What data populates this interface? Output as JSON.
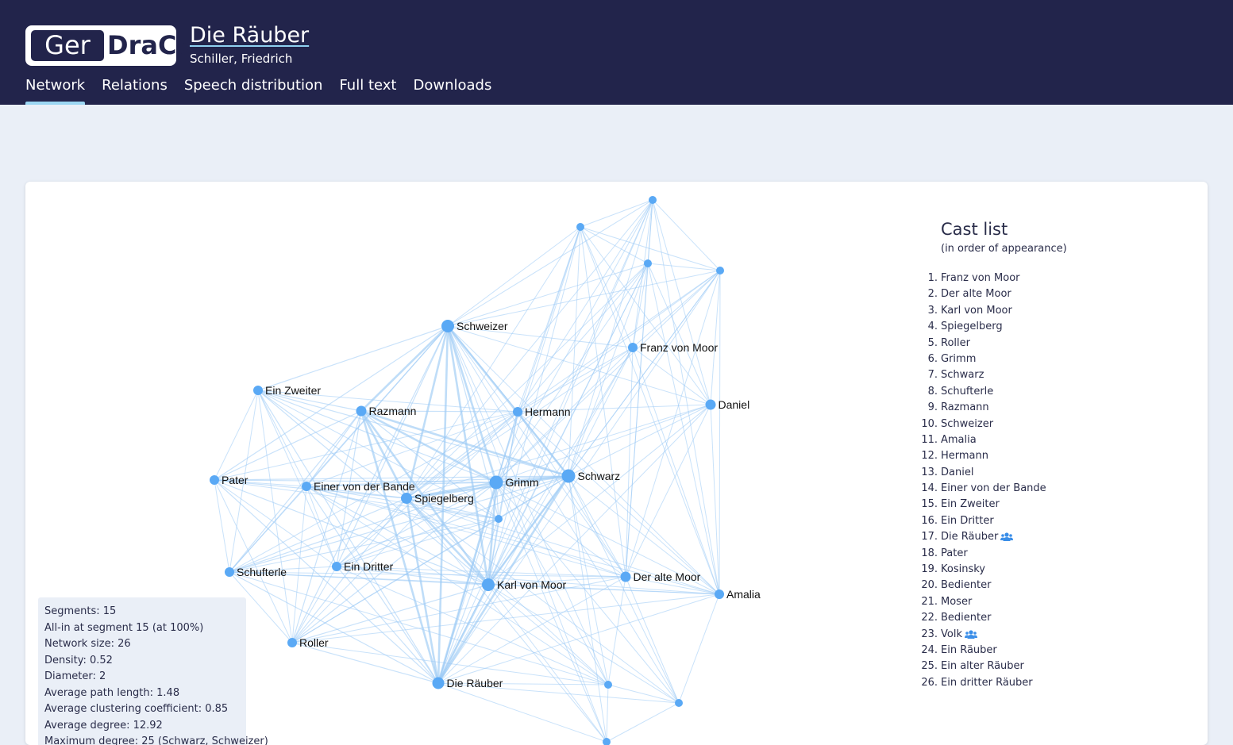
{
  "header": {
    "logo_ger": "Ger",
    "logo_dracor": "DraCor",
    "title": "Die Räuber",
    "author": "Schiller, Friedrich"
  },
  "tabs": [
    {
      "label": "Network",
      "active": true
    },
    {
      "label": "Relations",
      "active": false
    },
    {
      "label": "Speech distribution",
      "active": false
    },
    {
      "label": "Full text",
      "active": false
    },
    {
      "label": "Downloads",
      "active": false
    }
  ],
  "stats": [
    "Segments: 15",
    "All-in at segment 15 (at 100%)",
    "Network size: 26",
    "Density: 0.52",
    "Diameter: 2",
    "Average path length: 1.48",
    "Average clustering coefficient: 0.85",
    "Average degree: 12.92",
    "Maximum degree: 25 (Schwarz, Schweizer)"
  ],
  "cast": {
    "title": "Cast list",
    "subtitle": "(in order of appearance)",
    "items": [
      {
        "num": "1.",
        "name": "Franz von Moor",
        "group": false
      },
      {
        "num": "2.",
        "name": "Der alte Moor",
        "group": false
      },
      {
        "num": "3.",
        "name": "Karl von Moor",
        "group": false
      },
      {
        "num": "4.",
        "name": "Spiegelberg",
        "group": false
      },
      {
        "num": "5.",
        "name": "Roller",
        "group": false
      },
      {
        "num": "6.",
        "name": "Grimm",
        "group": false
      },
      {
        "num": "7.",
        "name": "Schwarz",
        "group": false
      },
      {
        "num": "8.",
        "name": "Schufterle",
        "group": false
      },
      {
        "num": "9.",
        "name": "Razmann",
        "group": false
      },
      {
        "num": "10.",
        "name": "Schweizer",
        "group": false
      },
      {
        "num": "11.",
        "name": "Amalia",
        "group": false
      },
      {
        "num": "12.",
        "name": "Hermann",
        "group": false
      },
      {
        "num": "13.",
        "name": "Daniel",
        "group": false
      },
      {
        "num": "14.",
        "name": "Einer von der Bande",
        "group": false
      },
      {
        "num": "15.",
        "name": "Ein Zweiter",
        "group": false
      },
      {
        "num": "16.",
        "name": "Ein Dritter",
        "group": false
      },
      {
        "num": "17.",
        "name": "Die Räuber",
        "group": true
      },
      {
        "num": "18.",
        "name": "Pater",
        "group": false
      },
      {
        "num": "19.",
        "name": "Kosinsky",
        "group": false
      },
      {
        "num": "20.",
        "name": "Bedienter",
        "group": false
      },
      {
        "num": "21.",
        "name": "Moser",
        "group": false
      },
      {
        "num": "22.",
        "name": "Bedienter",
        "group": false
      },
      {
        "num": "23.",
        "name": "Volk",
        "group": true
      },
      {
        "num": "24.",
        "name": "Ein Räuber",
        "group": false
      },
      {
        "num": "25.",
        "name": "Ein alter Räuber",
        "group": false
      },
      {
        "num": "26.",
        "name": "Ein dritter Räuber",
        "group": false
      }
    ]
  },
  "network": {
    "node_color": "#5aa9f5",
    "edge_color": "#9ccbf5",
    "nodes": [
      {
        "id": "schweizer",
        "label": "Schweizer"
      },
      {
        "id": "franz",
        "label": "Franz von Moor"
      },
      {
        "id": "zweiter",
        "label": "Ein Zweiter"
      },
      {
        "id": "razmann",
        "label": "Razmann"
      },
      {
        "id": "hermann",
        "label": "Hermann"
      },
      {
        "id": "daniel",
        "label": "Daniel"
      },
      {
        "id": "pater",
        "label": "Pater"
      },
      {
        "id": "einer",
        "label": "Einer von der Bande"
      },
      {
        "id": "grimm",
        "label": "Grimm"
      },
      {
        "id": "schwarz",
        "label": "Schwarz"
      },
      {
        "id": "spiegelberg",
        "label": "Spiegelberg"
      },
      {
        "id": "schufterle",
        "label": "Schufterle"
      },
      {
        "id": "dritter",
        "label": "Ein Dritter"
      },
      {
        "id": "karl",
        "label": "Karl von Moor"
      },
      {
        "id": "altemoor",
        "label": "Der alte Moor"
      },
      {
        "id": "amalia",
        "label": "Amalia"
      },
      {
        "id": "roller",
        "label": "Roller"
      },
      {
        "id": "raeuber",
        "label": "Die Räuber"
      },
      {
        "id": "u1",
        "label": ""
      },
      {
        "id": "u2",
        "label": ""
      },
      {
        "id": "u3",
        "label": ""
      },
      {
        "id": "u4",
        "label": ""
      },
      {
        "id": "u5",
        "label": ""
      },
      {
        "id": "u6",
        "label": ""
      },
      {
        "id": "u7",
        "label": ""
      },
      {
        "id": "u8",
        "label": ""
      }
    ]
  }
}
